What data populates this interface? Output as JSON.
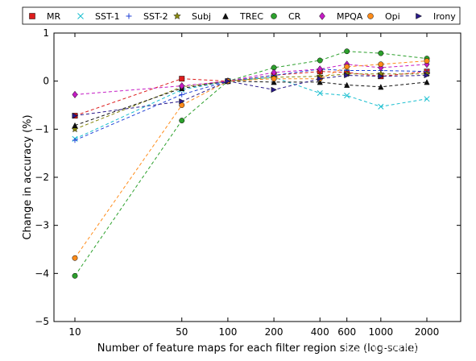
{
  "chart_data": {
    "type": "line",
    "title": "",
    "xlabel": "Number of feature maps for each filter region size (log-scale)",
    "ylabel": "Change in accuracy (%)",
    "x_scale": "log",
    "x": [
      10,
      50,
      100,
      200,
      400,
      600,
      1000,
      2000
    ],
    "x_tick_labels": [
      "10",
      "50",
      "100",
      "200",
      "400",
      "600",
      "1000",
      "2000"
    ],
    "ylim": [
      -5,
      1
    ],
    "y_ticks": [
      1,
      0,
      -1,
      -2,
      -3,
      -4,
      -5
    ],
    "y_tick_labels": [
      "1",
      "0",
      "−1",
      "−2",
      "−3",
      "−4",
      "−5"
    ],
    "grid": false,
    "legend_position": "top",
    "line_style": "dashed",
    "series": [
      {
        "name": "MR",
        "color": "#dd1c1c",
        "marker": "square",
        "values": [
          -0.72,
          0.05,
          0.0,
          0.12,
          0.2,
          0.18,
          0.1,
          0.2
        ]
      },
      {
        "name": "SST-1",
        "color": "#17becf",
        "marker": "x",
        "values": [
          -1.2,
          -0.18,
          0.0,
          0.08,
          -0.25,
          -0.3,
          -0.53,
          -0.37
        ]
      },
      {
        "name": "SST-2",
        "color": "#1f3fd6",
        "marker": "plus",
        "values": [
          -1.23,
          -0.28,
          0.0,
          0.12,
          0.25,
          0.22,
          0.22,
          0.2
        ]
      },
      {
        "name": "Subj",
        "color": "#888810",
        "marker": "star",
        "values": [
          -1.0,
          -0.12,
          0.0,
          0.08,
          0.1,
          0.15,
          0.15,
          0.15
        ]
      },
      {
        "name": "TREC",
        "color": "#111111",
        "marker": "triangle-up",
        "values": [
          -0.92,
          -0.15,
          0.0,
          -0.02,
          -0.02,
          -0.08,
          -0.12,
          -0.02
        ]
      },
      {
        "name": "CR",
        "color": "#2ca02c",
        "marker": "circle",
        "values": [
          -4.05,
          -0.82,
          0.0,
          0.28,
          0.43,
          0.62,
          0.58,
          0.47
        ]
      },
      {
        "name": "MPQA",
        "color": "#c51bc5",
        "marker": "diamond",
        "values": [
          -0.28,
          -0.1,
          0.0,
          0.18,
          0.25,
          0.35,
          0.28,
          0.35
        ]
      },
      {
        "name": "Opi",
        "color": "#ff8c1a",
        "marker": "circle",
        "values": [
          -3.68,
          -0.5,
          0.0,
          0.05,
          0.05,
          0.3,
          0.35,
          0.42
        ]
      },
      {
        "name": "Irony",
        "color": "#2a1a8a",
        "marker": "triangle-right",
        "values": [
          -0.72,
          -0.42,
          0.0,
          -0.18,
          0.05,
          0.12,
          0.1,
          0.12
        ]
      }
    ]
  },
  "watermark": "CSDN @青灯剑客"
}
